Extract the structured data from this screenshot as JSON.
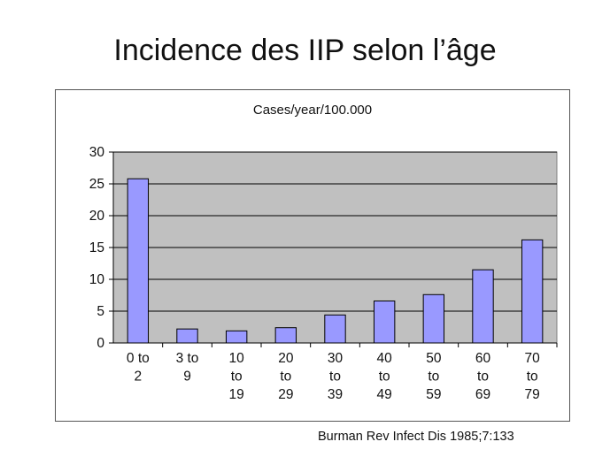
{
  "slide": {
    "title": "Incidence des IIP selon l’âge",
    "source": "Burman Rev Infect Dis 1985;7:133"
  },
  "chart_data": {
    "type": "bar",
    "title": "Cases/year/100.000",
    "categories": [
      [
        "0 to",
        "2"
      ],
      [
        "3 to",
        "9"
      ],
      [
        "10",
        "to",
        "19"
      ],
      [
        "20",
        "to",
        "29"
      ],
      [
        "30",
        "to",
        "39"
      ],
      [
        "40",
        "to",
        "49"
      ],
      [
        "50",
        "to",
        "59"
      ],
      [
        "60",
        "to",
        "69"
      ],
      [
        "70",
        "to",
        "79"
      ]
    ],
    "values": [
      25.8,
      2.2,
      1.9,
      2.4,
      4.4,
      6.6,
      7.6,
      11.5,
      16.2
    ],
    "ylim": [
      0,
      30
    ],
    "yticks": [
      0,
      5,
      10,
      15,
      20,
      25,
      30
    ],
    "grid": true,
    "colors": {
      "bar": "#9999ff",
      "bar_edge": "#000000",
      "plot_bg": "#c0c0c0",
      "grid": "#000000"
    }
  }
}
